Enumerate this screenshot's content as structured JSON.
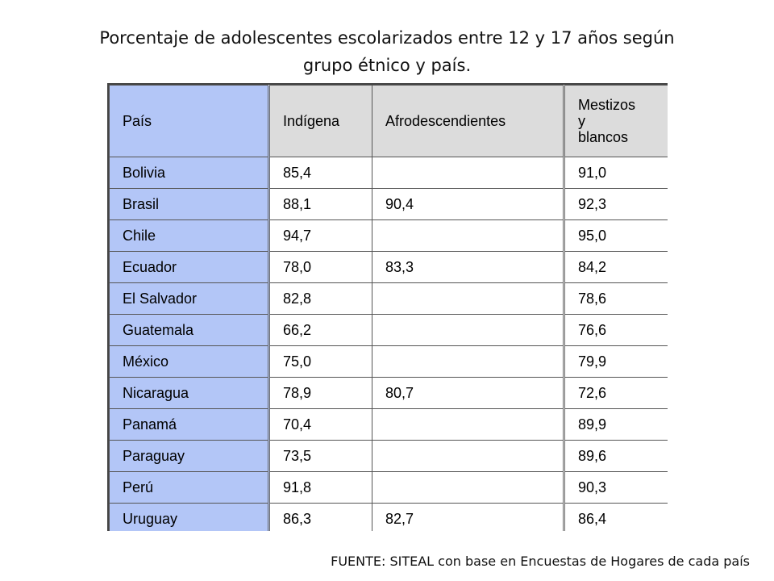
{
  "title_line1": "Porcentaje de adolescentes escolarizados entre 12 y 17 años según",
  "title_line2": "grupo étnico y país.",
  "table": {
    "headers": [
      "País",
      "Indígena",
      "Afrodescendientes",
      "Mestizos\ny\nblancos"
    ],
    "rows": [
      [
        "Bolivia",
        "85,4",
        "",
        "91,0"
      ],
      [
        "Brasil",
        "88,1",
        "90,4",
        "92,3"
      ],
      [
        "Chile",
        "94,7",
        "",
        "95,0"
      ],
      [
        "Ecuador",
        "78,0",
        "83,3",
        "84,2"
      ],
      [
        "El Salvador",
        "82,8",
        "",
        "78,6"
      ],
      [
        "Guatemala",
        "66,2",
        "",
        "76,6"
      ],
      [
        "México",
        "75,0",
        "",
        "79,9"
      ],
      [
        "Nicaragua",
        "78,9",
        "80,7",
        "72,6"
      ],
      [
        "Panamá",
        "70,4",
        "",
        "89,9"
      ],
      [
        "Paraguay",
        "73,5",
        "",
        "89,6"
      ],
      [
        "Perú",
        "91,8",
        "",
        "90,3"
      ],
      [
        "Uruguay",
        "86,3",
        "82,7",
        "86,4"
      ]
    ]
  },
  "source": "FUENTE: SITEAL con base en Encuestas de Hogares de cada país"
}
